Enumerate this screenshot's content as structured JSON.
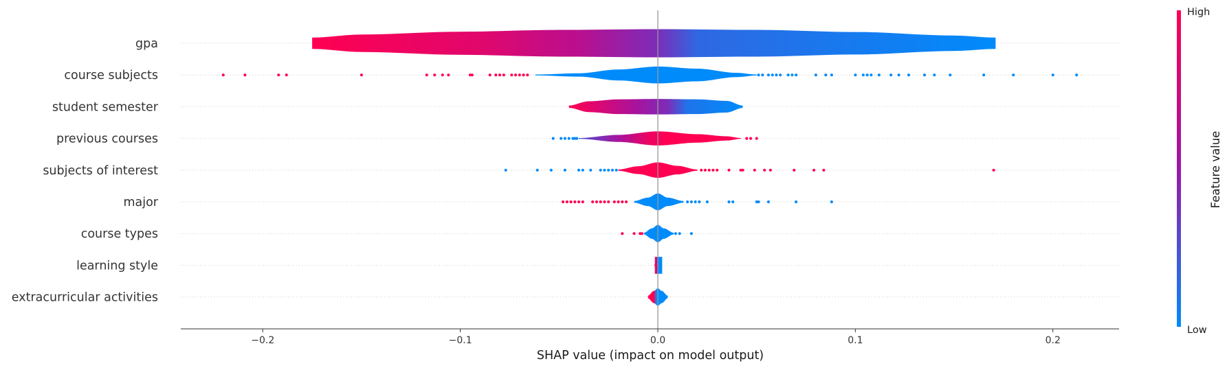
{
  "colors": {
    "low": "#008bfb",
    "mid": "#9b16a8",
    "high": "#ff0052",
    "row_line": "#cccccc",
    "zero_line": "#999999"
  },
  "colorbar": {
    "high_label": "High",
    "low_label": "Low",
    "title": "Feature value"
  },
  "chart_data": {
    "type": "violin",
    "xlabel": "SHAP value (impact on model output)",
    "xlim": [
      -0.2415,
      0.2335
    ],
    "xticks": [
      -0.2,
      -0.1,
      0.0,
      0.1,
      0.2
    ],
    "xtick_labels": [
      "−0.2",
      "−0.1",
      "0.0",
      "0.1",
      "0.2"
    ],
    "features": [
      {
        "name": "gpa",
        "violin": {
          "min": -0.175,
          "max": 0.171,
          "profile": [
            [
              -0.175,
              0.4
            ],
            [
              -0.15,
              0.62
            ],
            [
              -0.1,
              0.82
            ],
            [
              -0.05,
              0.95
            ],
            [
              0.0,
              1.0
            ],
            [
              0.05,
              0.95
            ],
            [
              0.1,
              0.8
            ],
            [
              0.15,
              0.55
            ],
            [
              0.171,
              0.4
            ]
          ],
          "scale": 1.0
        },
        "color_stops": [
          [
            -0.175,
            1.0
          ],
          [
            -0.09,
            0.85
          ],
          [
            -0.04,
            0.65
          ],
          [
            0.0,
            0.4
          ],
          [
            0.02,
            0.15
          ],
          [
            0.171,
            0.0
          ]
        ],
        "outliers": []
      },
      {
        "name": "course subjects",
        "violin": {
          "min": -0.062,
          "max": 0.05,
          "profile": [
            [
              -0.062,
              0.05
            ],
            [
              -0.04,
              0.2
            ],
            [
              -0.02,
              0.65
            ],
            [
              0.0,
              1.0
            ],
            [
              0.02,
              0.75
            ],
            [
              0.04,
              0.25
            ],
            [
              0.05,
              0.06
            ]
          ],
          "scale": 0.6
        },
        "color_stops": [
          [
            -0.062,
            0.0
          ],
          [
            0.05,
            0.0
          ]
        ],
        "outliers": [
          [
            -0.22,
            1
          ],
          [
            -0.209,
            1
          ],
          [
            -0.192,
            1
          ],
          [
            -0.188,
            1
          ],
          [
            -0.15,
            1
          ],
          [
            -0.117,
            1
          ],
          [
            -0.113,
            1
          ],
          [
            -0.109,
            1
          ],
          [
            -0.106,
            1
          ],
          [
            -0.095,
            1
          ],
          [
            -0.094,
            1
          ],
          [
            -0.085,
            1
          ],
          [
            -0.082,
            1
          ],
          [
            -0.08,
            1
          ],
          [
            -0.078,
            1
          ],
          [
            -0.074,
            1
          ],
          [
            -0.072,
            1
          ],
          [
            -0.07,
            1
          ],
          [
            -0.068,
            1
          ],
          [
            -0.066,
            1
          ],
          [
            0.051,
            0
          ],
          [
            0.053,
            0
          ],
          [
            0.056,
            0
          ],
          [
            0.058,
            0
          ],
          [
            0.06,
            0
          ],
          [
            0.062,
            0
          ],
          [
            0.066,
            0
          ],
          [
            0.068,
            0
          ],
          [
            0.07,
            0
          ],
          [
            0.08,
            0
          ],
          [
            0.085,
            0
          ],
          [
            0.088,
            0
          ],
          [
            0.1,
            0
          ],
          [
            0.104,
            0
          ],
          [
            0.106,
            0
          ],
          [
            0.108,
            0
          ],
          [
            0.112,
            0
          ],
          [
            0.118,
            0
          ],
          [
            0.122,
            0
          ],
          [
            0.127,
            0
          ],
          [
            0.135,
            0
          ],
          [
            0.14,
            0
          ],
          [
            0.148,
            0
          ],
          [
            0.165,
            0
          ],
          [
            0.18,
            0
          ],
          [
            0.2,
            0
          ],
          [
            0.212,
            0
          ]
        ]
      },
      {
        "name": "student semester",
        "violin": {
          "min": -0.045,
          "max": 0.043,
          "profile": [
            [
              -0.045,
              0.15
            ],
            [
              -0.035,
              0.7
            ],
            [
              -0.02,
              0.95
            ],
            [
              0.0,
              1.0
            ],
            [
              0.02,
              0.95
            ],
            [
              0.035,
              0.75
            ],
            [
              0.043,
              0.15
            ]
          ],
          "scale": 0.55
        },
        "color_stops": [
          [
            -0.045,
            1.0
          ],
          [
            -0.025,
            0.75
          ],
          [
            -0.01,
            0.55
          ],
          [
            0.005,
            0.4
          ],
          [
            0.015,
            0.1
          ],
          [
            0.043,
            0.0
          ]
        ],
        "outliers": []
      },
      {
        "name": "previous courses",
        "violin": {
          "min": -0.04,
          "max": 0.042,
          "profile": [
            [
              -0.04,
              0.06
            ],
            [
              -0.02,
              0.5
            ],
            [
              0.0,
              1.0
            ],
            [
              0.02,
              0.6
            ],
            [
              0.035,
              0.3
            ],
            [
              0.042,
              0.06
            ]
          ],
          "scale": 0.5
        },
        "color_stops": [
          [
            -0.04,
            0.25
          ],
          [
            -0.02,
            0.55
          ],
          [
            -0.005,
            0.9
          ],
          [
            0.005,
            1.0
          ],
          [
            0.042,
            1.0
          ]
        ],
        "outliers": [
          [
            -0.053,
            0
          ],
          [
            -0.049,
            0
          ],
          [
            -0.047,
            0
          ],
          [
            -0.045,
            0
          ],
          [
            -0.043,
            0
          ],
          [
            -0.042,
            0
          ],
          [
            -0.041,
            0
          ],
          [
            0.045,
            1
          ],
          [
            0.047,
            1
          ],
          [
            0.05,
            1
          ]
        ]
      },
      {
        "name": "subjects of interest",
        "violin": {
          "min": -0.02,
          "max": 0.02,
          "profile": [
            [
              -0.02,
              0.08
            ],
            [
              -0.01,
              0.5
            ],
            [
              0.0,
              1.0
            ],
            [
              0.01,
              0.55
            ],
            [
              0.02,
              0.08
            ]
          ],
          "scale": 0.55
        },
        "color_stops": [
          [
            -0.02,
            1.0
          ],
          [
            0.02,
            1.0
          ]
        ],
        "outliers": [
          [
            -0.077,
            0
          ],
          [
            -0.061,
            0
          ],
          [
            -0.054,
            0
          ],
          [
            -0.047,
            0
          ],
          [
            -0.04,
            0
          ],
          [
            -0.038,
            0
          ],
          [
            -0.034,
            0
          ],
          [
            -0.029,
            0
          ],
          [
            -0.027,
            0
          ],
          [
            -0.025,
            0
          ],
          [
            -0.023,
            0
          ],
          [
            -0.021,
            0
          ],
          [
            0.022,
            1
          ],
          [
            0.024,
            1
          ],
          [
            0.026,
            1
          ],
          [
            0.028,
            1
          ],
          [
            0.03,
            1
          ],
          [
            0.036,
            1
          ],
          [
            0.042,
            1
          ],
          [
            0.043,
            1
          ],
          [
            0.049,
            1
          ],
          [
            0.054,
            1
          ],
          [
            0.057,
            1
          ],
          [
            0.069,
            1
          ],
          [
            0.079,
            1
          ],
          [
            0.084,
            1
          ],
          [
            0.17,
            1
          ]
        ]
      },
      {
        "name": "major",
        "violin": {
          "min": -0.012,
          "max": 0.013,
          "profile": [
            [
              -0.012,
              0.1
            ],
            [
              -0.005,
              0.5
            ],
            [
              0.0,
              1.0
            ],
            [
              0.005,
              0.5
            ],
            [
              0.013,
              0.1
            ]
          ],
          "scale": 0.6
        },
        "color_stops": [
          [
            -0.012,
            0.0
          ],
          [
            0.013,
            0.0
          ]
        ],
        "outliers": [
          [
            -0.048,
            1
          ],
          [
            -0.046,
            1
          ],
          [
            -0.044,
            1
          ],
          [
            -0.042,
            1
          ],
          [
            -0.04,
            1
          ],
          [
            -0.038,
            1
          ],
          [
            -0.033,
            1
          ],
          [
            -0.031,
            1
          ],
          [
            -0.029,
            1
          ],
          [
            -0.027,
            1
          ],
          [
            -0.025,
            1
          ],
          [
            -0.022,
            1
          ],
          [
            -0.02,
            1
          ],
          [
            -0.018,
            1
          ],
          [
            -0.016,
            1
          ],
          [
            0.015,
            0
          ],
          [
            0.017,
            0
          ],
          [
            0.019,
            0
          ],
          [
            0.021,
            0
          ],
          [
            0.025,
            0
          ],
          [
            0.036,
            0
          ],
          [
            0.038,
            0
          ],
          [
            0.05,
            0
          ],
          [
            0.051,
            0
          ],
          [
            0.056,
            0
          ],
          [
            0.07,
            0
          ],
          [
            0.088,
            0
          ]
        ]
      },
      {
        "name": "course types",
        "violin": {
          "min": -0.007,
          "max": 0.008,
          "profile": [
            [
              -0.007,
              0.1
            ],
            [
              -0.003,
              0.6
            ],
            [
              0.0,
              1.0
            ],
            [
              0.003,
              0.6
            ],
            [
              0.008,
              0.1
            ]
          ],
          "scale": 0.62
        },
        "color_stops": [
          [
            -0.007,
            0.0
          ],
          [
            0.008,
            0.0
          ]
        ],
        "outliers": [
          [
            -0.018,
            1
          ],
          [
            -0.012,
            1
          ],
          [
            -0.009,
            1
          ],
          [
            -0.008,
            1
          ],
          [
            0.009,
            0
          ],
          [
            0.011,
            0
          ],
          [
            0.017,
            0
          ]
        ]
      },
      {
        "name": "learning style",
        "violin": {
          "min": -0.0015,
          "max": 0.0022,
          "profile": [
            [
              -0.0015,
              1.0
            ],
            [
              0.0022,
              1.0
            ]
          ],
          "scale": 0.6
        },
        "color_stops": [
          [
            -0.0015,
            1.0
          ],
          [
            -0.0005,
            0.6
          ],
          [
            0.0,
            0.0
          ],
          [
            0.0022,
            0.0
          ]
        ],
        "outliers": [
          [
            -0.001,
            1
          ]
        ]
      },
      {
        "name": "extracurricular activities",
        "violin": {
          "min": -0.005,
          "max": 0.005,
          "profile": [
            [
              -0.005,
              0.15
            ],
            [
              -0.002,
              0.7
            ],
            [
              0.0,
              1.0
            ],
            [
              0.002,
              0.7
            ],
            [
              0.005,
              0.15
            ]
          ],
          "scale": 0.62
        },
        "color_stops": [
          [
            -0.005,
            1.0
          ],
          [
            -0.002,
            1.0
          ],
          [
            -0.0008,
            0.0
          ],
          [
            0.005,
            0.0
          ]
        ],
        "outliers": []
      }
    ]
  }
}
